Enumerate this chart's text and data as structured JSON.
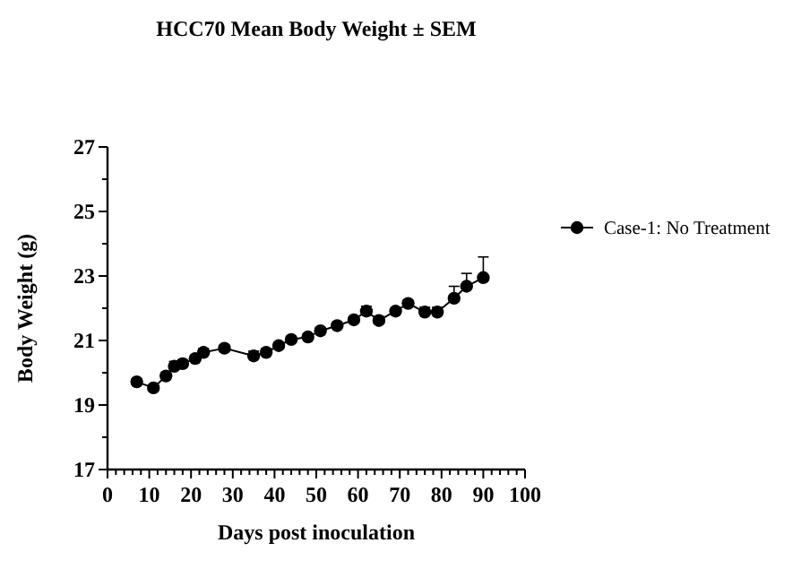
{
  "chart_data": {
    "type": "line",
    "title": "HCC70 Mean Body Weight ± SEM",
    "xlabel": "Days post inoculation",
    "ylabel": "Body Weight (g)",
    "x": [
      7,
      11,
      14,
      16,
      18,
      21,
      23,
      28,
      35,
      38,
      41,
      44,
      48,
      51,
      55,
      59,
      62,
      65,
      69,
      72,
      76,
      79,
      83,
      86,
      90
    ],
    "series": [
      {
        "name": "Case-1: No Treatment",
        "color": "#000000",
        "values": [
          19.72,
          19.53,
          19.9,
          20.2,
          20.28,
          20.44,
          20.63,
          20.76,
          20.52,
          20.63,
          20.84,
          21.03,
          21.11,
          21.3,
          21.46,
          21.64,
          21.91,
          21.62,
          21.91,
          22.15,
          21.88,
          21.88,
          22.31,
          22.68,
          22.95
        ],
        "errors": [
          [
            19.72,
            19.8
          ],
          [
            19.53,
            19.62
          ],
          [
            19.9,
            20.0
          ],
          [
            20.2,
            20.35
          ],
          [
            20.28,
            20.4
          ],
          [
            20.44,
            20.52
          ],
          [
            20.63,
            20.75
          ],
          [
            20.76,
            20.86
          ],
          [
            20.52,
            20.67
          ],
          [
            20.63,
            20.75
          ],
          [
            20.84,
            20.94
          ],
          [
            21.03,
            21.13
          ],
          [
            21.11,
            21.2
          ],
          [
            21.3,
            21.38
          ],
          [
            21.46,
            21.54
          ],
          [
            21.64,
            21.72
          ],
          [
            21.91,
            22.06
          ],
          [
            21.62,
            21.74
          ],
          [
            21.91,
            22.0
          ],
          [
            22.15,
            22.25
          ],
          [
            21.88,
            22.03
          ],
          [
            21.88,
            22.03
          ],
          [
            22.31,
            22.68
          ],
          [
            22.68,
            23.08
          ],
          [
            22.95,
            23.59
          ]
        ]
      }
    ],
    "xlim": [
      0,
      100
    ],
    "xticks": [
      0,
      {
        "value": 2,
        "label": null
      },
      {
        "value": 4,
        "label": null
      },
      {
        "value": 6,
        "label": null
      },
      {
        "value": 8,
        "label": null
      },
      10,
      {
        "value": 12,
        "label": null
      },
      {
        "value": 14,
        "label": null
      },
      {
        "value": 16,
        "label": null
      },
      {
        "value": 18,
        "label": null
      },
      20,
      {
        "value": 22,
        "label": null
      },
      {
        "value": 24,
        "label": null
      },
      {
        "value": 26,
        "label": null
      },
      {
        "value": 28,
        "label": null
      },
      30,
      {
        "value": 32,
        "label": null
      },
      {
        "value": 34,
        "label": null
      },
      {
        "value": 36,
        "label": null
      },
      {
        "value": 38,
        "label": null
      },
      40,
      {
        "value": 42,
        "label": null
      },
      {
        "value": 44,
        "label": null
      },
      {
        "value": 46,
        "label": null
      },
      {
        "value": 48,
        "label": null
      },
      50,
      {
        "value": 52,
        "label": null
      },
      {
        "value": 54,
        "label": null
      },
      {
        "value": 56,
        "label": null
      },
      {
        "value": 58,
        "label": null
      },
      60,
      {
        "value": 62,
        "label": null
      },
      {
        "value": 64,
        "label": null
      },
      {
        "value": 66,
        "label": null
      },
      {
        "value": 68,
        "label": null
      },
      70,
      {
        "value": 72,
        "label": null
      },
      {
        "value": 74,
        "label": null
      },
      {
        "value": 76,
        "label": null
      },
      {
        "value": 78,
        "label": null
      },
      80,
      {
        "value": 82,
        "label": null
      },
      {
        "value": 84,
        "label": null
      },
      {
        "value": 86,
        "label": null
      },
      {
        "value": 88,
        "label": null
      },
      90,
      {
        "value": 92,
        "label": null
      },
      {
        "value": 94,
        "label": null
      },
      {
        "value": 96,
        "label": null
      },
      {
        "value": 98,
        "label": null
      },
      100
    ],
    "ylim": [
      17,
      27
    ],
    "yticks": [
      17,
      {
        "value": 18,
        "label": null
      },
      19,
      {
        "value": 20,
        "label": null
      },
      21,
      {
        "value": 22,
        "label": null
      },
      23,
      {
        "value": 24,
        "label": null
      },
      25,
      {
        "value": 26,
        "label": null
      },
      27
    ],
    "marker": "circle",
    "line_style": "solid",
    "legend": "right",
    "grid": false
  }
}
